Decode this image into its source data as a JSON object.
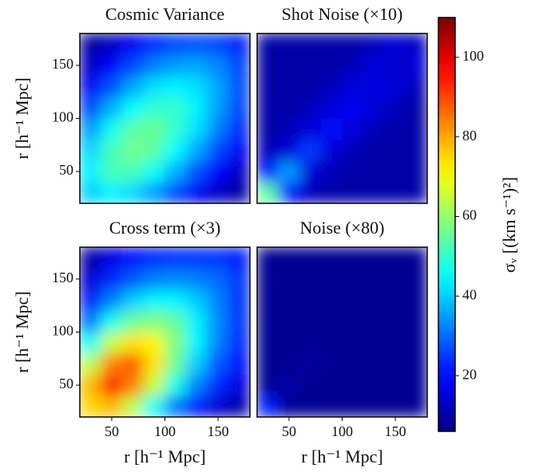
{
  "chart_data": [
    {
      "type": "heatmap",
      "title": "Cosmic Variance",
      "ylabel": "r [h⁻¹ Mpc]",
      "x": [
        30,
        50,
        70,
        90,
        110,
        130,
        150,
        170
      ],
      "y": [
        30,
        50,
        70,
        90,
        110,
        130,
        150,
        170
      ],
      "values": [
        [
          40,
          44,
          41,
          35,
          26,
          18,
          13,
          9
        ],
        [
          44,
          52,
          52,
          46,
          37,
          27,
          19,
          13
        ],
        [
          41,
          52,
          57,
          54,
          45,
          36,
          26,
          18
        ],
        [
          35,
          46,
          54,
          56,
          50,
          42,
          32,
          23
        ],
        [
          26,
          37,
          45,
          50,
          50,
          44,
          35,
          26
        ],
        [
          18,
          27,
          36,
          42,
          44,
          42,
          36,
          27
        ],
        [
          13,
          19,
          26,
          32,
          35,
          36,
          33,
          26
        ],
        [
          9,
          13,
          18,
          23,
          26,
          27,
          26,
          22
        ]
      ],
      "xlim": [
        20,
        180
      ],
      "ylim": [
        20,
        180
      ],
      "yticks": [
        50,
        100,
        150
      ]
    },
    {
      "type": "heatmap",
      "title": "Shot Noise (×10)",
      "x": [
        30,
        50,
        70,
        90,
        110,
        130,
        150,
        170
      ],
      "y": [
        30,
        50,
        70,
        90,
        110,
        130,
        150,
        170
      ],
      "values": [
        [
          55,
          20,
          12,
          10,
          10,
          10,
          10,
          10
        ],
        [
          20,
          35,
          15,
          12,
          10,
          10,
          10,
          10
        ],
        [
          12,
          15,
          25,
          15,
          12,
          10,
          10,
          10
        ],
        [
          10,
          12,
          15,
          20,
          15,
          12,
          10,
          10
        ],
        [
          10,
          10,
          12,
          15,
          18,
          15,
          12,
          10
        ],
        [
          10,
          10,
          10,
          12,
          15,
          16,
          15,
          12
        ],
        [
          10,
          10,
          10,
          10,
          12,
          15,
          14,
          15
        ],
        [
          10,
          10,
          10,
          10,
          10,
          12,
          15,
          13
        ]
      ],
      "xlim": [
        20,
        180
      ],
      "ylim": [
        20,
        180
      ]
    },
    {
      "type": "heatmap",
      "title": "Cross term (×3)",
      "xlabel": "r [h⁻¹ Mpc]",
      "ylabel": "r [h⁻¹ Mpc]",
      "x": [
        30,
        50,
        70,
        90,
        110,
        130,
        150,
        170
      ],
      "y": [
        30,
        50,
        70,
        90,
        110,
        130,
        150,
        170
      ],
      "values": [
        [
          75,
          78,
          64,
          46,
          31,
          21,
          14,
          10
        ],
        [
          78,
          95,
          84,
          65,
          47,
          32,
          23,
          16
        ],
        [
          64,
          84,
          88,
          74,
          56,
          40,
          28,
          20
        ],
        [
          46,
          65,
          74,
          72,
          58,
          44,
          32,
          23
        ],
        [
          31,
          47,
          56,
          58,
          55,
          44,
          33,
          24
        ],
        [
          21,
          32,
          40,
          44,
          44,
          40,
          32,
          24
        ],
        [
          14,
          23,
          28,
          32,
          33,
          32,
          30,
          24
        ],
        [
          10,
          16,
          20,
          23,
          24,
          24,
          24,
          22
        ]
      ],
      "xlim": [
        20,
        180
      ],
      "ylim": [
        20,
        180
      ],
      "xticks": [
        50,
        100,
        150
      ],
      "yticks": [
        50,
        100,
        150
      ]
    },
    {
      "type": "heatmap",
      "title": "Noise (×80)",
      "xlabel": "r [h⁻¹ Mpc]",
      "x": [
        30,
        50,
        70,
        90,
        110,
        130,
        150,
        170
      ],
      "y": [
        30,
        50,
        70,
        90,
        110,
        130,
        150,
        170
      ],
      "values": [
        [
          22,
          8,
          8,
          8,
          8,
          8,
          8,
          8
        ],
        [
          8,
          10,
          8,
          8,
          8,
          8,
          8,
          8
        ],
        [
          8,
          8,
          9,
          8,
          8,
          8,
          8,
          8
        ],
        [
          8,
          8,
          8,
          8,
          8,
          8,
          8,
          8
        ],
        [
          8,
          8,
          8,
          8,
          8,
          8,
          8,
          8
        ],
        [
          8,
          8,
          8,
          8,
          8,
          8,
          8,
          8
        ],
        [
          8,
          8,
          8,
          8,
          8,
          8,
          8,
          8
        ],
        [
          8,
          8,
          8,
          8,
          8,
          8,
          8,
          8
        ]
      ],
      "xlim": [
        20,
        180
      ],
      "ylim": [
        20,
        180
      ],
      "xticks": [
        50,
        100,
        150
      ]
    }
  ],
  "colorbar": {
    "label": "σᵥ [(km s⁻¹)²]",
    "colormap": "jet",
    "clim": [
      6,
      110
    ],
    "ticks": [
      20,
      40,
      60,
      80,
      100
    ]
  }
}
